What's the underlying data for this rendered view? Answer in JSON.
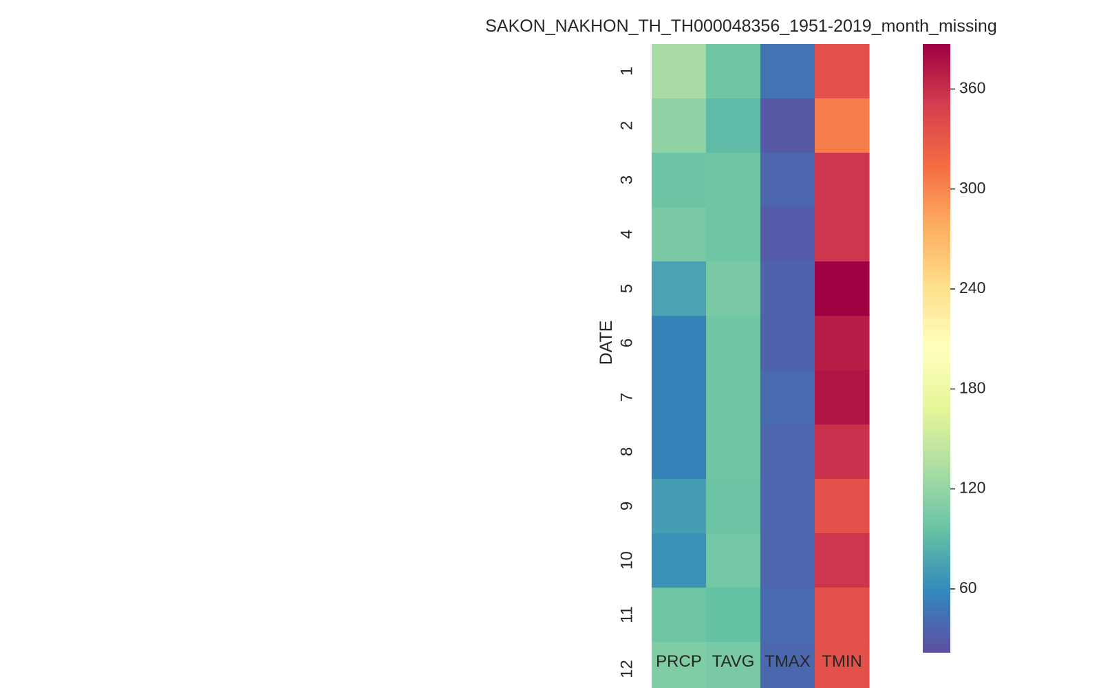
{
  "chart_data": {
    "type": "heatmap",
    "title": "SAKON_NAKHON_TH_TH000048356_1951-2019_month_missing",
    "xlabel": "",
    "ylabel": "DATE",
    "columns": [
      "PRCP",
      "TAVG",
      "TMAX",
      "TMIN"
    ],
    "rows": [
      "1",
      "2",
      "3",
      "4",
      "5",
      "6",
      "7",
      "8",
      "9",
      "10",
      "11",
      "12"
    ],
    "values": [
      [
        130,
        100,
        45,
        335
      ],
      [
        118,
        90,
        28,
        305
      ],
      [
        98,
        100,
        36,
        355
      ],
      [
        105,
        100,
        30,
        355
      ],
      [
        75,
        105,
        34,
        387
      ],
      [
        55,
        100,
        34,
        370
      ],
      [
        55,
        100,
        40,
        375
      ],
      [
        55,
        100,
        36,
        358
      ],
      [
        72,
        98,
        36,
        335
      ],
      [
        65,
        102,
        36,
        355
      ],
      [
        100,
        95,
        40,
        335
      ],
      [
        108,
        105,
        38,
        335
      ]
    ],
    "colormap": "Spectral_r",
    "vmin": 22,
    "vmax": 387,
    "colorbar_ticks": [
      "60",
      "120",
      "180",
      "240",
      "300",
      "360"
    ]
  }
}
